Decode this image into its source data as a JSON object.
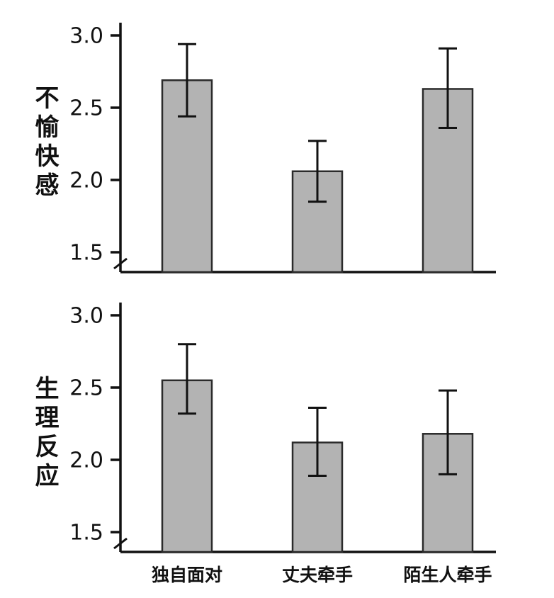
{
  "chart_data": [
    {
      "type": "bar",
      "ylabel": "不愉快感",
      "categories": [
        "独自面对",
        "丈夫牵手",
        "陌生人牵手"
      ],
      "values": [
        2.69,
        2.06,
        2.63
      ],
      "errors": [
        [
          2.44,
          2.94
        ],
        [
          1.85,
          2.27
        ],
        [
          2.36,
          2.91
        ]
      ],
      "ylim": [
        1.5,
        3.0
      ],
      "yticks": [
        "3.0",
        "2.5",
        "2.0",
        "1.5"
      ],
      "axis_break": true,
      "grid": false,
      "error_bars": true,
      "bar_color": "#b3b3b3",
      "bar_border": "#2b2b2b",
      "axis_color": "#111111"
    },
    {
      "type": "bar",
      "ylabel": "生理反应",
      "categories": [
        "独自面对",
        "丈夫牵手",
        "陌生人牵手"
      ],
      "values": [
        2.55,
        2.12,
        2.18
      ],
      "errors": [
        [
          2.32,
          2.8
        ],
        [
          1.89,
          2.36
        ],
        [
          1.9,
          2.48
        ]
      ],
      "ylim": [
        1.5,
        3.0
      ],
      "yticks": [
        "3.0",
        "2.5",
        "2.0",
        "1.5"
      ],
      "axis_break": true,
      "grid": false,
      "error_bars": true,
      "bar_color": "#b3b3b3",
      "bar_border": "#2b2b2b",
      "axis_color": "#111111"
    }
  ]
}
